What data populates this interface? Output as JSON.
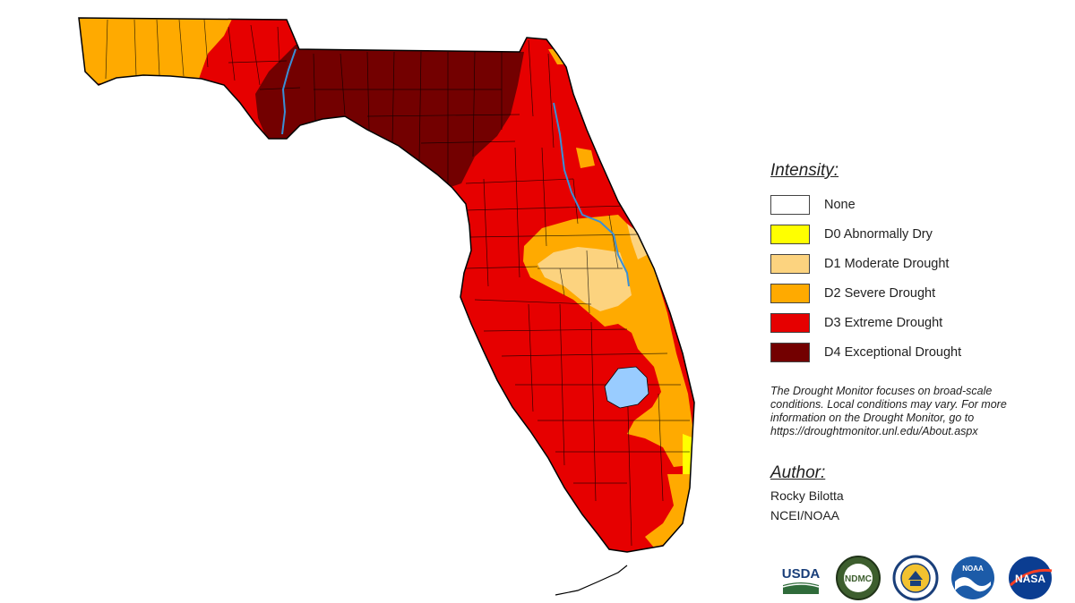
{
  "legend": {
    "title": "Intensity:",
    "items": [
      {
        "label": "None",
        "color": "#ffffff"
      },
      {
        "label": "D0 Abnormally Dry",
        "color": "#ffff00"
      },
      {
        "label": "D1 Moderate Drought",
        "color": "#fcd37f"
      },
      {
        "label": "D2 Severe Drought",
        "color": "#ffaa00"
      },
      {
        "label": "D3 Extreme Drought",
        "color": "#e60000"
      },
      {
        "label": "D4 Exceptional Drought",
        "color": "#730000"
      }
    ]
  },
  "note": {
    "line1": "The Drought Monitor focuses on broad-scale",
    "line2": "conditions. Local conditions may vary. For more",
    "line3": "information on the Drought Monitor, go to",
    "line4": "https://droughtmonitor.unl.edu/About.aspx"
  },
  "author": {
    "title": "Author:",
    "name": "Rocky Bilotta",
    "org": "NCEI/NOAA"
  },
  "logos": {
    "usda": "USDA",
    "ndmc": "NDMC",
    "noaa": "NOAA",
    "nasa": "NASA",
    "icons": [
      "usda-logo",
      "ndmc-logo",
      "doc-seal-logo",
      "noaa-logo",
      "nasa-logo"
    ]
  },
  "colors": {
    "water": "#99ccff",
    "river": "#3a8fd6",
    "border": "#000000"
  }
}
